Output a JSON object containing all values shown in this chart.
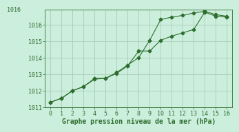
{
  "line1_x": [
    0,
    1,
    2,
    3,
    4,
    5,
    6,
    7,
    8,
    9,
    10,
    11,
    12,
    13,
    14,
    15,
    16
  ],
  "line1_y": [
    1011.3,
    1011.55,
    1012.0,
    1012.25,
    1012.7,
    1012.75,
    1013.1,
    1013.55,
    1014.0,
    1015.05,
    1016.3,
    1016.45,
    1016.55,
    1016.7,
    1016.8,
    1016.6,
    1016.5
  ],
  "line2_x": [
    0,
    1,
    2,
    3,
    4,
    5,
    6,
    7,
    8,
    9,
    10,
    11,
    12,
    13,
    14,
    15,
    16
  ],
  "line2_y": [
    1011.3,
    1011.55,
    1012.0,
    1012.25,
    1012.75,
    1012.75,
    1013.05,
    1013.5,
    1014.4,
    1014.4,
    1015.05,
    1015.3,
    1015.5,
    1015.7,
    1016.75,
    1016.5,
    1016.45
  ],
  "line_color": "#2d6e2d",
  "bg_color": "#cceedd",
  "grid_color": "#aaccbb",
  "xlabel": "Graphe pression niveau de la mer (hPa)",
  "ylim": [
    1011,
    1016.9
  ],
  "xlim": [
    -0.5,
    16.5
  ],
  "yticks": [
    1011,
    1012,
    1013,
    1014,
    1015,
    1016
  ],
  "xticks": [
    0,
    1,
    2,
    3,
    4,
    5,
    6,
    7,
    8,
    9,
    10,
    11,
    12,
    13,
    14,
    15,
    16
  ],
  "xlabel_fontsize": 7,
  "tick_fontsize": 6,
  "line_width": 0.8,
  "marker_size": 2.5,
  "top_label": "1016"
}
